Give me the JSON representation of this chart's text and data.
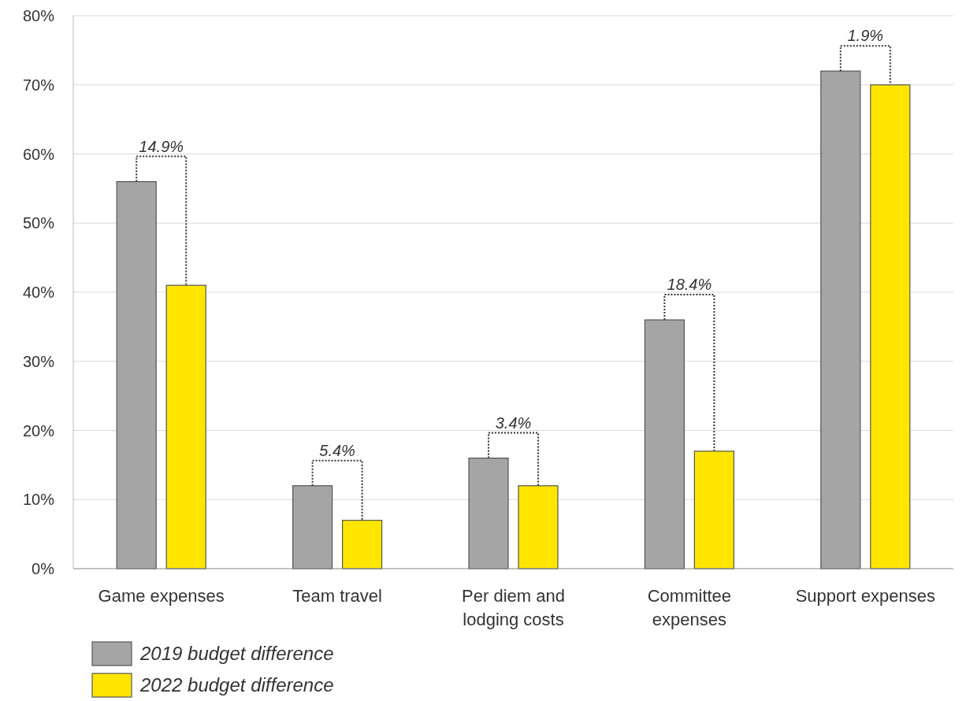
{
  "chart_data": {
    "type": "bar",
    "categories": [
      "Game expenses",
      "Team travel",
      "Per diem and lodging costs",
      "Committee expenses",
      "Support expenses"
    ],
    "series": [
      {
        "name": "2019 budget difference",
        "color": "#a5a5a5",
        "values": [
          56,
          12,
          16,
          36,
          72
        ]
      },
      {
        "name": "2022 budget difference",
        "color": "#ffe600",
        "values": [
          41,
          7,
          12,
          17,
          70
        ]
      }
    ],
    "ylim": [
      0,
      80
    ],
    "yticks": [
      {
        "value": 0,
        "label": "0%"
      },
      {
        "value": 10,
        "label": "10%"
      },
      {
        "value": 20,
        "label": "20%"
      },
      {
        "value": 30,
        "label": "30%"
      },
      {
        "value": 40,
        "label": "40%"
      },
      {
        "value": 50,
        "label": "50%"
      },
      {
        "value": 60,
        "label": "60%"
      },
      {
        "value": 70,
        "label": "70%"
      },
      {
        "value": 80,
        "label": "80%"
      }
    ],
    "grid": "y",
    "legend": "bottom left",
    "annotations": [
      "14.9%",
      "5.4%",
      "3.4%",
      "18.4%",
      "1.9%"
    ]
  }
}
